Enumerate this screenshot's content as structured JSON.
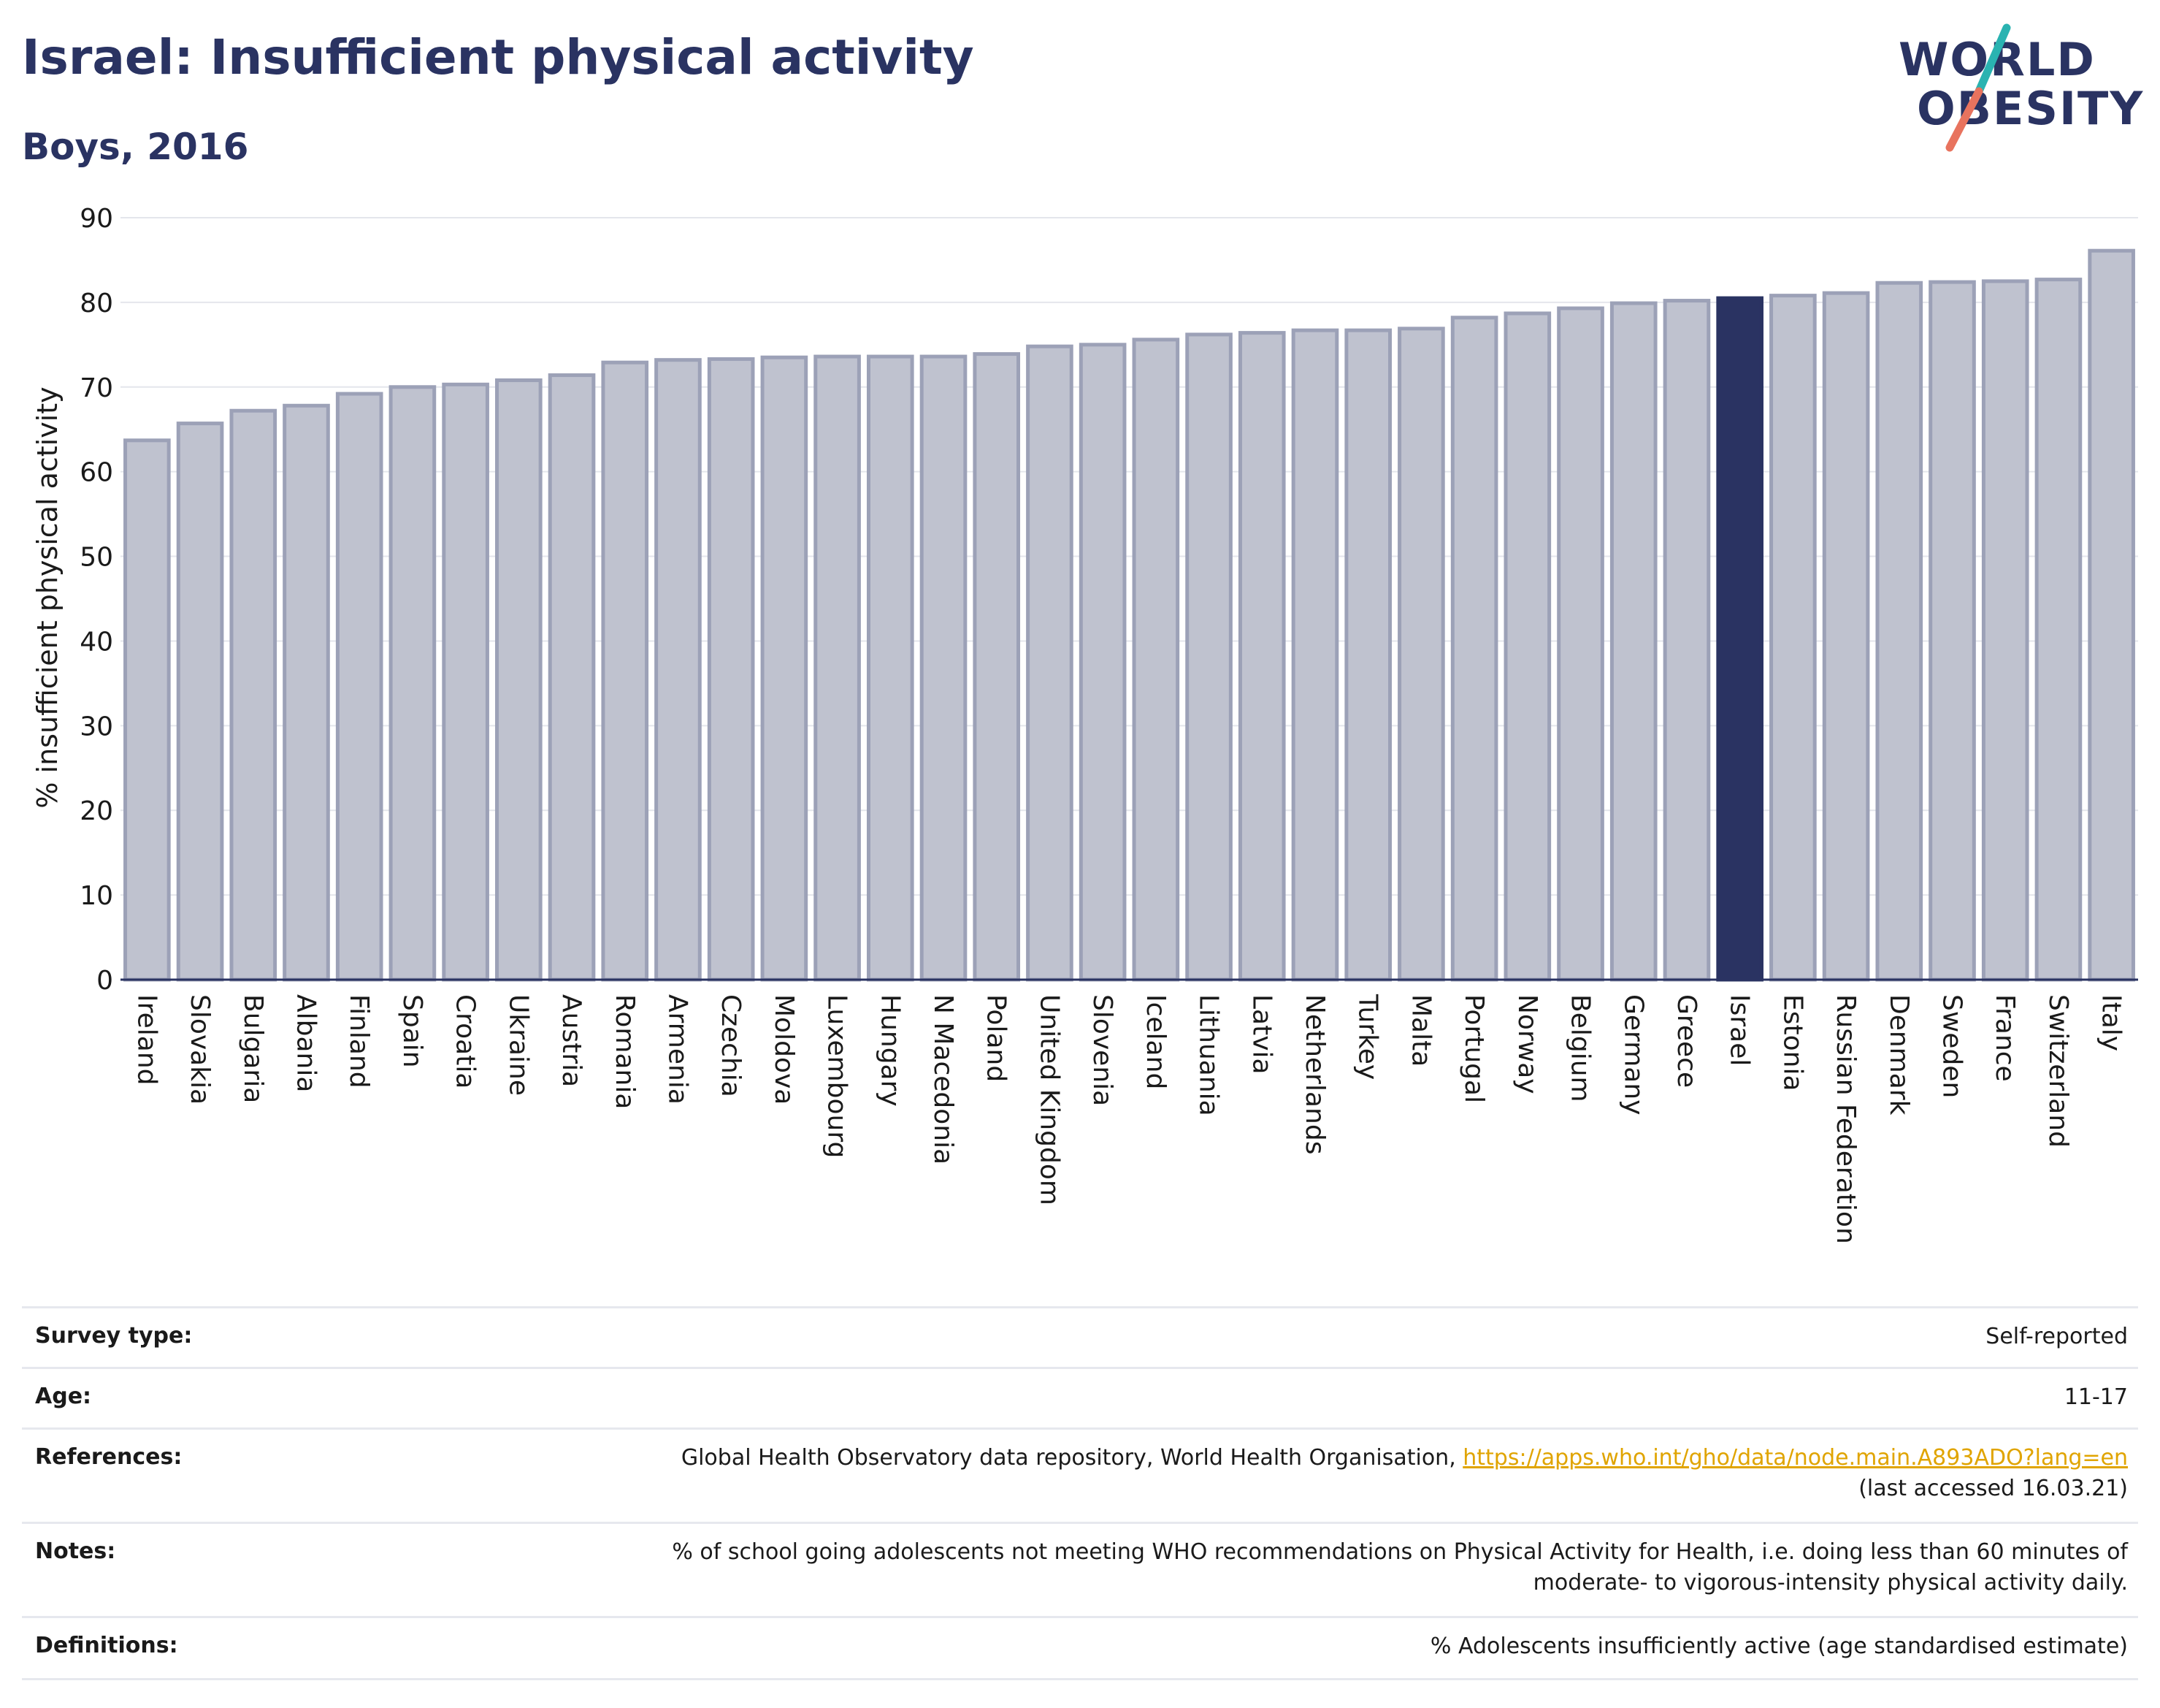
{
  "header": {
    "title": "Israel: Insufficient physical activity",
    "subtitle": "Boys, 2016"
  },
  "logo": {
    "line1": "WORLD",
    "line2": "OBESITY",
    "slash_colors": [
      "#2ab3b1",
      "#e8735e"
    ]
  },
  "chart_data": {
    "type": "bar",
    "ylabel": "% insufficient physical activity",
    "ylim": [
      0,
      90
    ],
    "yticks": [
      0,
      10,
      20,
      30,
      40,
      50,
      60,
      70,
      80,
      90
    ],
    "grid": true,
    "highlight": "Israel",
    "colors": {
      "bar": "#bfc2cf",
      "bar_edge": "#9ca1b7",
      "highlight": "#2a3362"
    },
    "categories": [
      "Ireland",
      "Slovakia",
      "Bulgaria",
      "Albania",
      "Finland",
      "Spain",
      "Croatia",
      "Ukraine",
      "Austria",
      "Romania",
      "Armenia",
      "Czechia",
      "Moldova",
      "Luxembourg",
      "Hungary",
      "N Macedonia",
      "Poland",
      "United Kingdom",
      "Slovenia",
      "Iceland",
      "Lithuania",
      "Latvia",
      "Netherlands",
      "Turkey",
      "Malta",
      "Portugal",
      "Norway",
      "Belgium",
      "Germany",
      "Greece",
      "Israel",
      "Estonia",
      "Russian Federation",
      "Denmark",
      "Sweden",
      "France",
      "Switzerland",
      "Italy"
    ],
    "values": [
      63.7,
      65.7,
      67.2,
      67.8,
      69.2,
      70.0,
      70.3,
      70.8,
      71.4,
      72.9,
      73.2,
      73.3,
      73.5,
      73.6,
      73.6,
      73.6,
      73.9,
      74.8,
      75.0,
      75.6,
      76.2,
      76.4,
      76.7,
      76.7,
      76.9,
      78.2,
      78.7,
      79.3,
      79.9,
      80.2,
      80.5,
      80.8,
      81.1,
      82.3,
      82.4,
      82.5,
      82.7,
      86.1
    ]
  },
  "info": {
    "rows": [
      {
        "label": "Survey type:",
        "lines": [
          "Self-reported"
        ]
      },
      {
        "label": "Age:",
        "lines": [
          "11-17"
        ]
      },
      {
        "label": "References:",
        "lines": [
          "Global Health Observatory data repository, World Health Organisation, ",
          "(last accessed 16.03.21)"
        ],
        "link": "https://apps.who.int/gho/data/node.main.A893ADO?lang=en"
      },
      {
        "label": "Notes:",
        "lines": [
          "% of school going adolescents not meeting WHO recommendations on Physical Activity for Health, i.e. doing less than 60 minutes of",
          "moderate- to vigorous-intensity physical activity daily."
        ]
      },
      {
        "label": "Definitions:",
        "lines": [
          "% Adolescents insufficiently active (age standardised estimate)"
        ]
      }
    ]
  }
}
